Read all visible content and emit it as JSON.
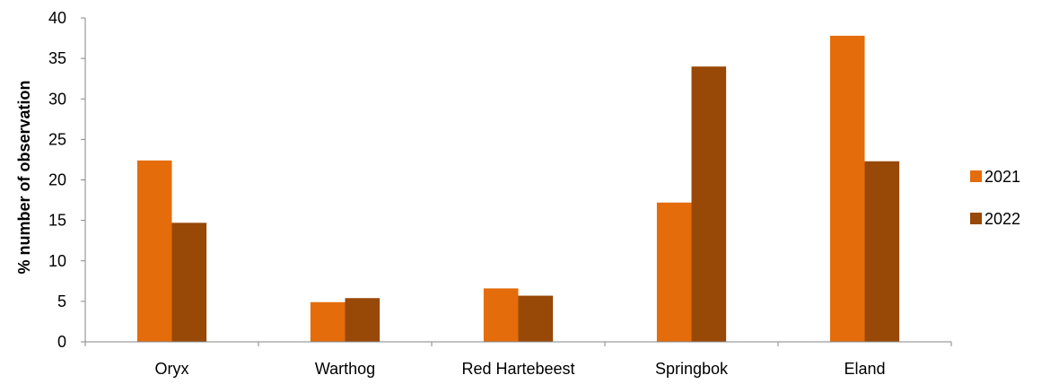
{
  "chart_data": {
    "type": "bar",
    "title": "",
    "xlabel": "",
    "ylabel": "% number of observation",
    "categories": [
      "Oryx",
      "Warthog",
      "Red Hartebeest",
      "Springbok",
      "Eland"
    ],
    "series": [
      {
        "name": "2021",
        "color": "#E46C0A",
        "values": [
          22.4,
          4.9,
          6.6,
          17.2,
          37.8
        ]
      },
      {
        "name": "2022",
        "color": "#984807",
        "values": [
          14.7,
          5.4,
          5.7,
          34.0,
          22.3
        ]
      }
    ],
    "ylim": [
      0,
      40
    ],
    "yticks": [
      "0",
      "5",
      "10",
      "15",
      "20",
      "25",
      "30",
      "35",
      "40"
    ],
    "grid": false,
    "legend_position": "right"
  }
}
